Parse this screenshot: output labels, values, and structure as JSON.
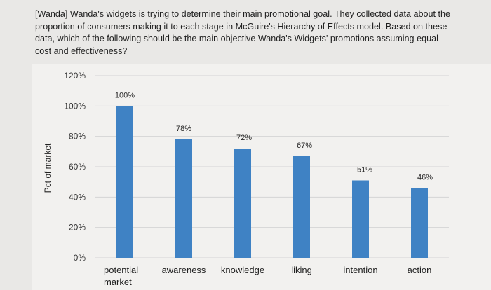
{
  "question": {
    "text": "[Wanda] Wanda's widgets is trying to determine their main promotional goal. They collected data about the proportion of consumers making it to each stage in McGuire's Hierarchy of Effects model. Based on these data, which of the following should be the main objective Wanda's Widgets' promotions assuming equal cost and effectiveness?"
  },
  "chart_data": {
    "type": "bar",
    "categories": [
      "potential market",
      "awareness",
      "knowledge",
      "liking",
      "intention",
      "action"
    ],
    "values": [
      100,
      78,
      72,
      67,
      51,
      46
    ],
    "data_labels": [
      "100%",
      "78%",
      "72%",
      "67%",
      "51%",
      "46%"
    ],
    "ylabel": "Pct of market",
    "xlabel": "",
    "ylim": [
      0,
      120
    ],
    "yticks": [
      "0%",
      "20%",
      "40%",
      "60%",
      "80%",
      "100%",
      "120%"
    ],
    "grid": true,
    "legend": "none",
    "bar_color": "#3f82c4",
    "grid_color": "#d4d4d4"
  }
}
